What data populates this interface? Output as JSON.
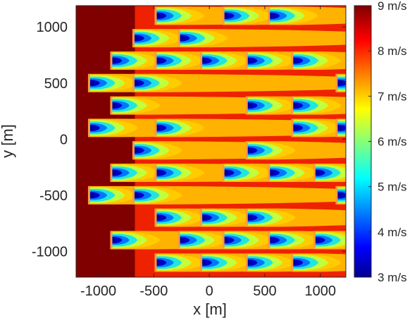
{
  "chart_data": {
    "type": "heatmap",
    "title": "",
    "xlabel": "x [m]",
    "ylabel": "y [m]",
    "xlim": [
      -1200,
      1230
    ],
    "ylim": [
      -1230,
      1190
    ],
    "x_ticks": [
      -1000,
      -500,
      0,
      500,
      1000
    ],
    "x_tick_labels": [
      "-1000",
      "-500",
      "0",
      "500",
      "1000"
    ],
    "y_ticks": [
      1000,
      500,
      0,
      -500,
      -1000
    ],
    "y_tick_labels": [
      "1000",
      "500",
      "0",
      "-500",
      "-1000"
    ],
    "colorbar": {
      "range": [
        3,
        9
      ],
      "ticks": [
        9,
        8,
        7,
        6,
        5,
        4,
        3
      ],
      "tick_labels": [
        "9 m/s",
        "8 m/s",
        "7 m/s",
        "6 m/s",
        "5 m/s",
        "4 m/s",
        "3 m/s"
      ],
      "colormap": "jet"
    },
    "free_stream_speed": 9,
    "wake_speed_min": 3,
    "turbines": [
      {
        "x": -480,
        "y": 1100
      },
      {
        "x": 130,
        "y": 1100
      },
      {
        "x": 540,
        "y": 1100
      },
      {
        "x": -680,
        "y": 900
      },
      {
        "x": -270,
        "y": 900
      },
      {
        "x": -880,
        "y": 700
      },
      {
        "x": -480,
        "y": 700
      },
      {
        "x": -70,
        "y": 700
      },
      {
        "x": 340,
        "y": 700
      },
      {
        "x": 750,
        "y": 700
      },
      {
        "x": -1080,
        "y": 500
      },
      {
        "x": -680,
        "y": 500
      },
      {
        "x": 1150,
        "y": 500
      },
      {
        "x": -880,
        "y": 300
      },
      {
        "x": 340,
        "y": 300
      },
      {
        "x": 750,
        "y": 300
      },
      {
        "x": -1080,
        "y": 100
      },
      {
        "x": -480,
        "y": 100
      },
      {
        "x": 750,
        "y": 100
      },
      {
        "x": 1150,
        "y": 100
      },
      {
        "x": -680,
        "y": -100
      },
      {
        "x": 340,
        "y": -100
      },
      {
        "x": -880,
        "y": -300
      },
      {
        "x": -480,
        "y": -300
      },
      {
        "x": 130,
        "y": -300
      },
      {
        "x": 540,
        "y": -300
      },
      {
        "x": 950,
        "y": -300
      },
      {
        "x": -1080,
        "y": -500
      },
      {
        "x": -680,
        "y": -500
      },
      {
        "x": 1150,
        "y": -500
      },
      {
        "x": -480,
        "y": -700
      },
      {
        "x": -70,
        "y": -700
      },
      {
        "x": 340,
        "y": -700
      },
      {
        "x": -880,
        "y": -900
      },
      {
        "x": -270,
        "y": -900
      },
      {
        "x": 130,
        "y": -900
      },
      {
        "x": 540,
        "y": -900
      },
      {
        "x": 950,
        "y": -900
      },
      {
        "x": -480,
        "y": -1100
      },
      {
        "x": -70,
        "y": -1100
      },
      {
        "x": 340,
        "y": -1100
      },
      {
        "x": 750,
        "y": -1100
      }
    ]
  }
}
